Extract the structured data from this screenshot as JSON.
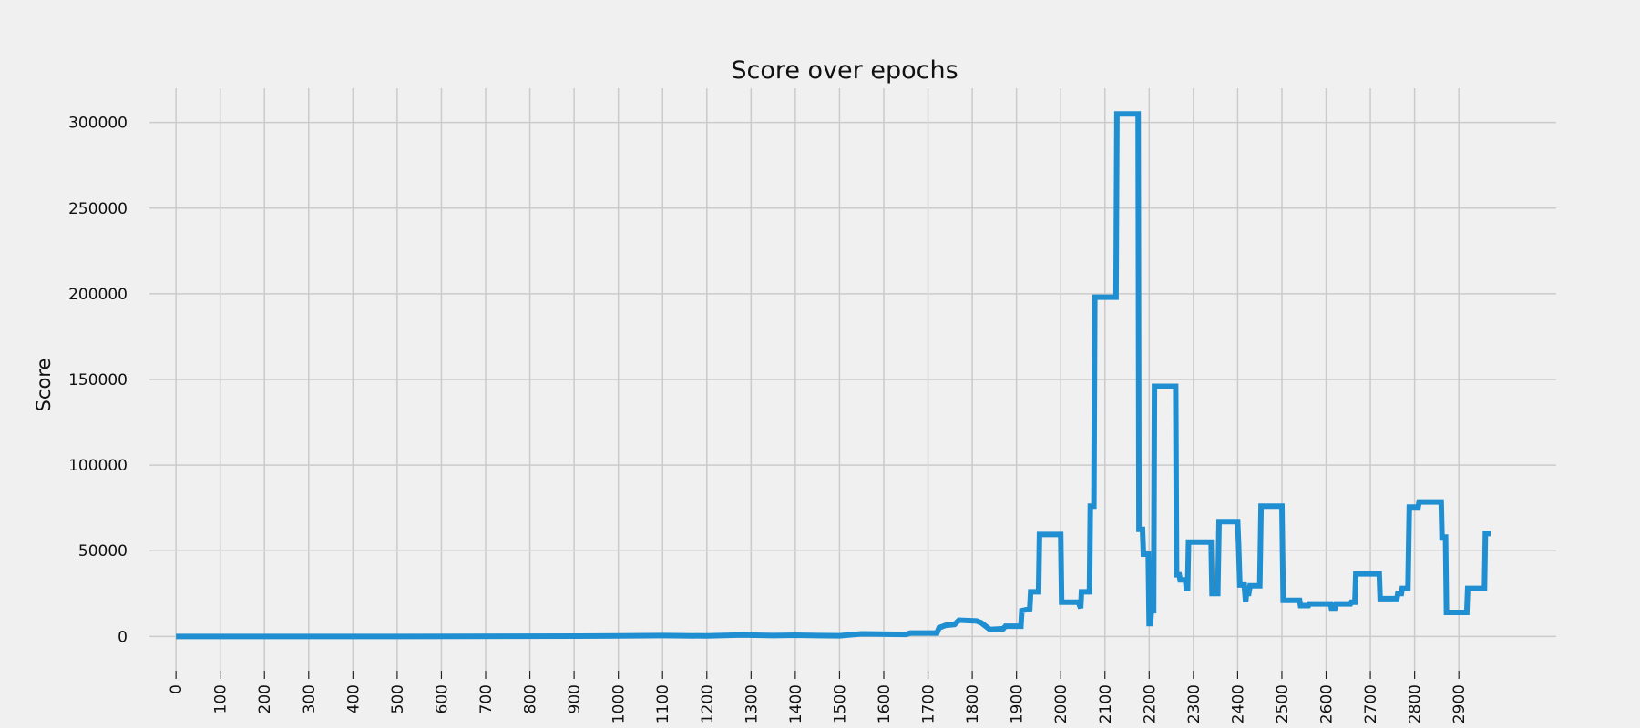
{
  "chart_data": {
    "type": "line",
    "title": "Score over epochs",
    "xlabel": "",
    "ylabel": "Score",
    "xlim": [
      -60,
      3120
    ],
    "ylim": [
      -20000,
      320000
    ],
    "grid": true,
    "colors": {
      "line": "#1f8fd1",
      "background": "#f0f0f0",
      "grid": "#cbcbcb"
    },
    "x_ticks": [
      0,
      100,
      200,
      300,
      400,
      500,
      600,
      700,
      800,
      900,
      1000,
      1100,
      1200,
      1300,
      1400,
      1500,
      1600,
      1700,
      1800,
      1900,
      2000,
      2100,
      2200,
      2300,
      2400,
      2500,
      2600,
      2700,
      2800,
      2900
    ],
    "y_ticks": [
      0,
      50000,
      100000,
      150000,
      200000,
      250000,
      300000
    ],
    "series": [
      {
        "points": [
          [
            0,
            0
          ],
          [
            500,
            0
          ],
          [
            900,
            200
          ],
          [
            1000,
            300
          ],
          [
            1100,
            500
          ],
          [
            1200,
            300
          ],
          [
            1280,
            800
          ],
          [
            1350,
            500
          ],
          [
            1400,
            700
          ],
          [
            1450,
            500
          ],
          [
            1500,
            400
          ],
          [
            1520,
            800
          ],
          [
            1550,
            1500
          ],
          [
            1650,
            1200
          ],
          [
            1660,
            2000
          ],
          [
            1720,
            2000
          ],
          [
            1725,
            5000
          ],
          [
            1740,
            6500
          ],
          [
            1760,
            7000
          ],
          [
            1770,
            9500
          ],
          [
            1810,
            9000
          ],
          [
            1820,
            8000
          ],
          [
            1840,
            4000
          ],
          [
            1870,
            4500
          ],
          [
            1875,
            6000
          ],
          [
            1910,
            6000
          ],
          [
            1912,
            15000
          ],
          [
            1930,
            16000
          ],
          [
            1932,
            26000
          ],
          [
            1950,
            26000
          ],
          [
            1952,
            59500
          ],
          [
            2000,
            59500
          ],
          [
            2002,
            20000
          ],
          [
            2040,
            20000
          ],
          [
            2045,
            16500
          ],
          [
            2047,
            26000
          ],
          [
            2065,
            26000
          ],
          [
            2067,
            76000
          ],
          [
            2075,
            76000
          ],
          [
            2077,
            198000
          ],
          [
            2125,
            198000
          ],
          [
            2127,
            305000
          ],
          [
            2175,
            305000
          ],
          [
            2177,
            62500
          ],
          [
            2185,
            62500
          ],
          [
            2187,
            48000
          ],
          [
            2198,
            48000
          ],
          [
            2200,
            7500
          ],
          [
            2203,
            7500
          ],
          [
            2205,
            15000
          ],
          [
            2210,
            15000
          ],
          [
            2212,
            146000
          ],
          [
            2260,
            146000
          ],
          [
            2262,
            36000
          ],
          [
            2268,
            36000
          ],
          [
            2270,
            33000
          ],
          [
            2282,
            33000
          ],
          [
            2284,
            28000
          ],
          [
            2287,
            28000
          ],
          [
            2289,
            55000
          ],
          [
            2340,
            55000
          ],
          [
            2342,
            25000
          ],
          [
            2355,
            25000
          ],
          [
            2358,
            67000
          ],
          [
            2400,
            67000
          ],
          [
            2402,
            54000
          ],
          [
            2405,
            30000
          ],
          [
            2415,
            30000
          ],
          [
            2418,
            20000
          ],
          [
            2420,
            25000
          ],
          [
            2425,
            25000
          ],
          [
            2428,
            29500
          ],
          [
            2450,
            29500
          ],
          [
            2453,
            76000
          ],
          [
            2500,
            76000
          ],
          [
            2503,
            21000
          ],
          [
            2540,
            21000
          ],
          [
            2542,
            18000
          ],
          [
            2560,
            18000
          ],
          [
            2562,
            19000
          ],
          [
            2610,
            19000
          ],
          [
            2612,
            16500
          ],
          [
            2620,
            16500
          ],
          [
            2622,
            19000
          ],
          [
            2655,
            19000
          ],
          [
            2657,
            20000
          ],
          [
            2665,
            20000
          ],
          [
            2667,
            36500
          ],
          [
            2720,
            36500
          ],
          [
            2722,
            22000
          ],
          [
            2760,
            22000
          ],
          [
            2762,
            25000
          ],
          [
            2770,
            25000
          ],
          [
            2772,
            28000
          ],
          [
            2785,
            28000
          ],
          [
            2788,
            75500
          ],
          [
            2808,
            75500
          ],
          [
            2810,
            78500
          ],
          [
            2860,
            78500
          ],
          [
            2862,
            58000
          ],
          [
            2870,
            58000
          ],
          [
            2872,
            14000
          ],
          [
            2918,
            14000
          ],
          [
            2920,
            28000
          ],
          [
            2958,
            28000
          ],
          [
            2960,
            60000
          ],
          [
            2972,
            60000
          ]
        ]
      }
    ]
  }
}
